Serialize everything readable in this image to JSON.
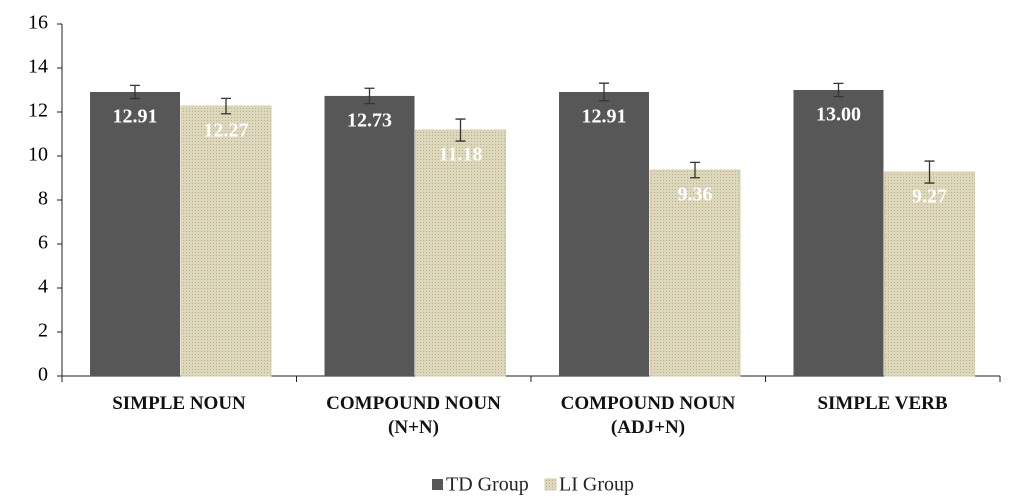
{
  "chart_data": {
    "type": "bar",
    "categories": [
      "SIMPLE NOUN",
      "COMPOUND NOUN\n(N+N)",
      "COMPOUND NOUN\n(ADJ+N)",
      "SIMPLE VERB"
    ],
    "series": [
      {
        "name": "TD Group",
        "color": "#575757",
        "values": [
          12.91,
          12.73,
          12.91,
          13.0
        ],
        "value_labels": [
          "12.91",
          "12.73",
          "12.91",
          "13.00"
        ],
        "errors": [
          0.3,
          0.35,
          0.4,
          0.3
        ]
      },
      {
        "name": "LI Group",
        "color": "#d5cead",
        "values": [
          12.27,
          11.18,
          9.36,
          9.27
        ],
        "value_labels": [
          "12.27",
          "11.18",
          "9.36",
          "9.27"
        ],
        "errors": [
          0.35,
          0.5,
          0.35,
          0.5
        ]
      }
    ],
    "ylim": [
      0,
      16
    ],
    "yticks": [
      0,
      2,
      4,
      6,
      8,
      10,
      12,
      14,
      16
    ],
    "legend": "bottom"
  }
}
